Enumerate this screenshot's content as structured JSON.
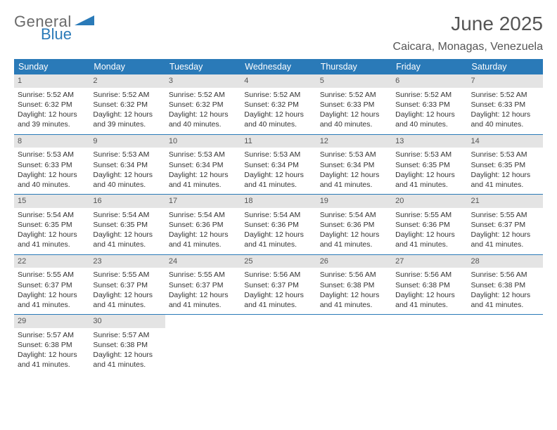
{
  "brand": {
    "general": "General",
    "blue": "Blue"
  },
  "title": "June 2025",
  "location": "Caicara, Monagas, Venezuela",
  "header_bg": "#2a7ab8",
  "header_fg": "#ffffff",
  "weekdays": [
    "Sunday",
    "Monday",
    "Tuesday",
    "Wednesday",
    "Thursday",
    "Friday",
    "Saturday"
  ],
  "weeks": [
    [
      {
        "n": "1",
        "sr": "5:52 AM",
        "ss": "6:32 PM",
        "dh": "12",
        "dm": "39"
      },
      {
        "n": "2",
        "sr": "5:52 AM",
        "ss": "6:32 PM",
        "dh": "12",
        "dm": "39"
      },
      {
        "n": "3",
        "sr": "5:52 AM",
        "ss": "6:32 PM",
        "dh": "12",
        "dm": "40"
      },
      {
        "n": "4",
        "sr": "5:52 AM",
        "ss": "6:32 PM",
        "dh": "12",
        "dm": "40"
      },
      {
        "n": "5",
        "sr": "5:52 AM",
        "ss": "6:33 PM",
        "dh": "12",
        "dm": "40"
      },
      {
        "n": "6",
        "sr": "5:52 AM",
        "ss": "6:33 PM",
        "dh": "12",
        "dm": "40"
      },
      {
        "n": "7",
        "sr": "5:52 AM",
        "ss": "6:33 PM",
        "dh": "12",
        "dm": "40"
      }
    ],
    [
      {
        "n": "8",
        "sr": "5:53 AM",
        "ss": "6:33 PM",
        "dh": "12",
        "dm": "40"
      },
      {
        "n": "9",
        "sr": "5:53 AM",
        "ss": "6:34 PM",
        "dh": "12",
        "dm": "40"
      },
      {
        "n": "10",
        "sr": "5:53 AM",
        "ss": "6:34 PM",
        "dh": "12",
        "dm": "41"
      },
      {
        "n": "11",
        "sr": "5:53 AM",
        "ss": "6:34 PM",
        "dh": "12",
        "dm": "41"
      },
      {
        "n": "12",
        "sr": "5:53 AM",
        "ss": "6:34 PM",
        "dh": "12",
        "dm": "41"
      },
      {
        "n": "13",
        "sr": "5:53 AM",
        "ss": "6:35 PM",
        "dh": "12",
        "dm": "41"
      },
      {
        "n": "14",
        "sr": "5:53 AM",
        "ss": "6:35 PM",
        "dh": "12",
        "dm": "41"
      }
    ],
    [
      {
        "n": "15",
        "sr": "5:54 AM",
        "ss": "6:35 PM",
        "dh": "12",
        "dm": "41"
      },
      {
        "n": "16",
        "sr": "5:54 AM",
        "ss": "6:35 PM",
        "dh": "12",
        "dm": "41"
      },
      {
        "n": "17",
        "sr": "5:54 AM",
        "ss": "6:36 PM",
        "dh": "12",
        "dm": "41"
      },
      {
        "n": "18",
        "sr": "5:54 AM",
        "ss": "6:36 PM",
        "dh": "12",
        "dm": "41"
      },
      {
        "n": "19",
        "sr": "5:54 AM",
        "ss": "6:36 PM",
        "dh": "12",
        "dm": "41"
      },
      {
        "n": "20",
        "sr": "5:55 AM",
        "ss": "6:36 PM",
        "dh": "12",
        "dm": "41"
      },
      {
        "n": "21",
        "sr": "5:55 AM",
        "ss": "6:37 PM",
        "dh": "12",
        "dm": "41"
      }
    ],
    [
      {
        "n": "22",
        "sr": "5:55 AM",
        "ss": "6:37 PM",
        "dh": "12",
        "dm": "41"
      },
      {
        "n": "23",
        "sr": "5:55 AM",
        "ss": "6:37 PM",
        "dh": "12",
        "dm": "41"
      },
      {
        "n": "24",
        "sr": "5:55 AM",
        "ss": "6:37 PM",
        "dh": "12",
        "dm": "41"
      },
      {
        "n": "25",
        "sr": "5:56 AM",
        "ss": "6:37 PM",
        "dh": "12",
        "dm": "41"
      },
      {
        "n": "26",
        "sr": "5:56 AM",
        "ss": "6:38 PM",
        "dh": "12",
        "dm": "41"
      },
      {
        "n": "27",
        "sr": "5:56 AM",
        "ss": "6:38 PM",
        "dh": "12",
        "dm": "41"
      },
      {
        "n": "28",
        "sr": "5:56 AM",
        "ss": "6:38 PM",
        "dh": "12",
        "dm": "41"
      }
    ],
    [
      {
        "n": "29",
        "sr": "5:57 AM",
        "ss": "6:38 PM",
        "dh": "12",
        "dm": "41"
      },
      {
        "n": "30",
        "sr": "5:57 AM",
        "ss": "6:38 PM",
        "dh": "12",
        "dm": "41"
      },
      null,
      null,
      null,
      null,
      null
    ]
  ],
  "labels": {
    "sunrise": "Sunrise: ",
    "sunset": "Sunset: ",
    "daylight1": "Daylight: ",
    "daylight2": " hours and ",
    "daylight3": " minutes."
  }
}
